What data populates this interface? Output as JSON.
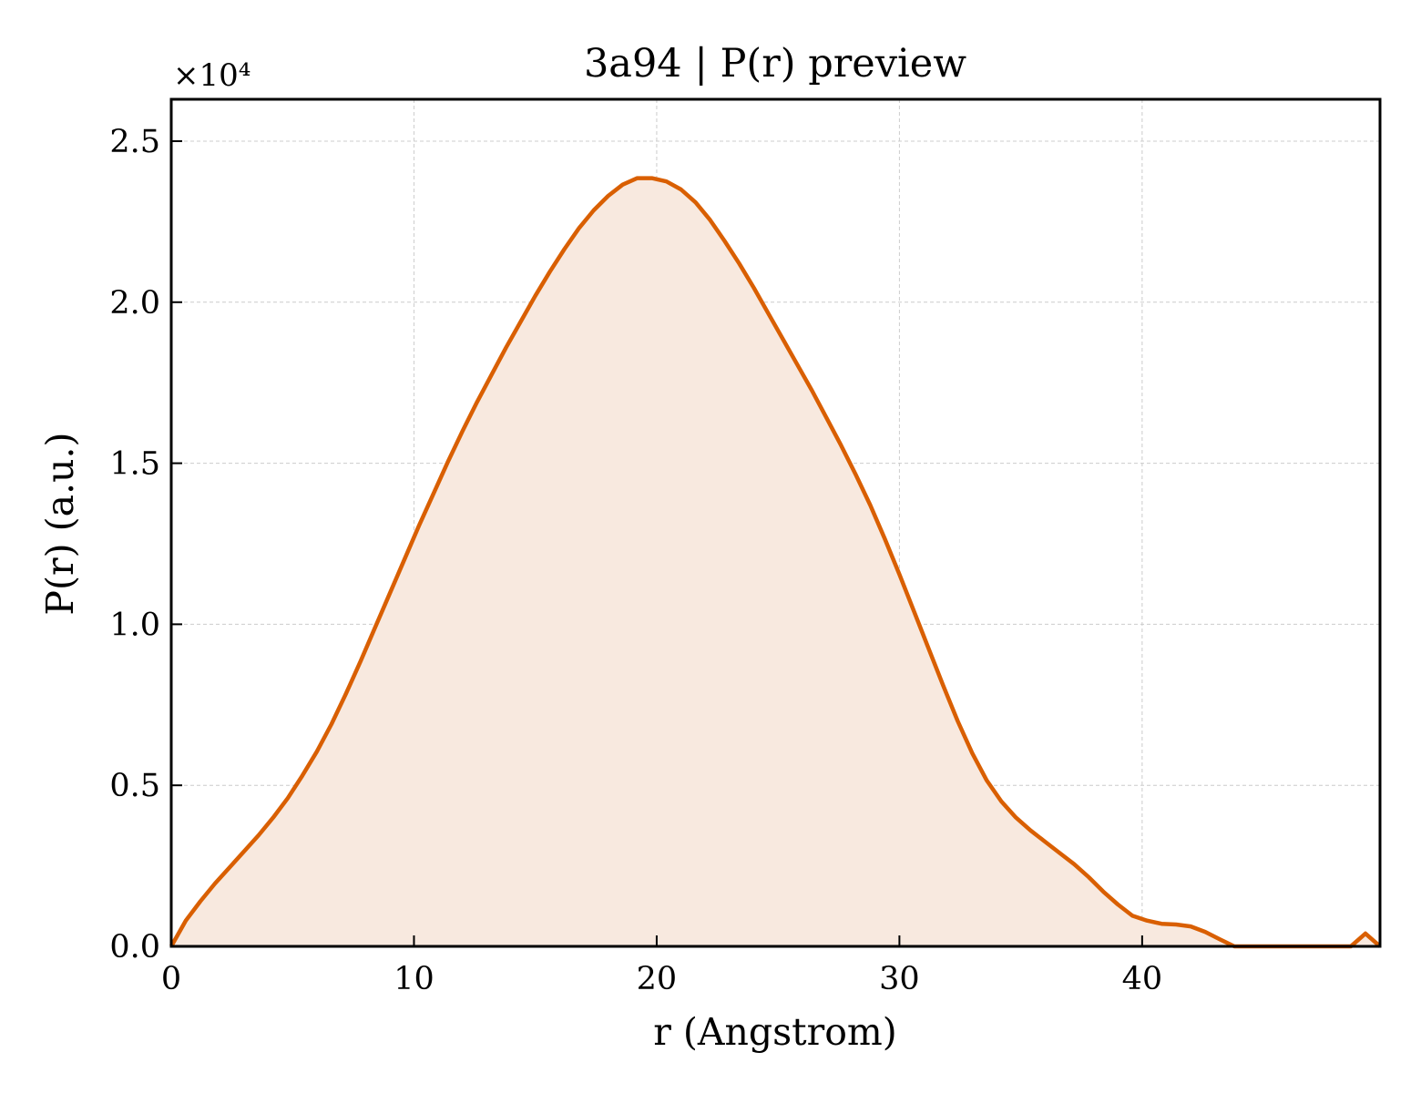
{
  "chart_data": {
    "type": "area",
    "title": "3a94 | P(r) preview",
    "xlabel": "r (Angstrom)",
    "ylabel": "P(r) (a.u.)",
    "y_offset_label": "×10⁴",
    "y_scale_factor": 10000,
    "xlim": [
      0,
      49.8
    ],
    "ylim": [
      0,
      26300
    ],
    "x_ticks": [
      0,
      10,
      20,
      30,
      40
    ],
    "x_tick_labels": [
      "0",
      "10",
      "20",
      "30",
      "40"
    ],
    "y_ticks": [
      0,
      5000,
      10000,
      15000,
      20000,
      25000
    ],
    "y_tick_labels": [
      "0.0",
      "0.5",
      "1.0",
      "1.5",
      "2.0",
      "2.5"
    ],
    "grid": true,
    "line_color": "#d95f02",
    "fill_color": "#f8e9df",
    "series": [
      {
        "x": [
          0,
          0.6,
          1.2,
          1.8,
          2.4,
          3.0,
          3.6,
          4.2,
          4.8,
          5.4,
          6.0,
          6.6,
          7.2,
          7.8,
          8.4,
          9.0,
          9.6,
          10.2,
          10.8,
          11.4,
          12.0,
          12.6,
          13.2,
          13.8,
          14.4,
          15.0,
          15.6,
          16.2,
          16.8,
          17.4,
          18.0,
          18.6,
          19.2,
          19.8,
          20.4,
          21.0,
          21.6,
          22.2,
          22.8,
          23.4,
          24.0,
          24.6,
          25.2,
          25.8,
          26.4,
          27.0,
          27.6,
          28.2,
          28.8,
          29.4,
          30.0,
          30.6,
          31.2,
          31.8,
          32.4,
          33.0,
          33.6,
          34.2,
          34.8,
          35.4,
          36.0,
          36.6,
          37.2,
          37.8,
          38.4,
          39.0,
          39.6,
          40.2,
          40.8,
          41.4,
          42.0,
          42.6,
          43.2,
          43.8,
          44.4,
          45.0,
          45.6,
          46.2,
          46.8,
          47.4,
          48.0,
          48.6,
          49.2,
          49.8
        ],
        "y": [
          0,
          800,
          1400,
          1950,
          2450,
          2950,
          3450,
          4000,
          4600,
          5300,
          6050,
          6900,
          7850,
          8850,
          9900,
          10950,
          12000,
          13050,
          14050,
          15050,
          16000,
          16900,
          17750,
          18600,
          19400,
          20200,
          20950,
          21650,
          22300,
          22850,
          23300,
          23650,
          23850,
          23850,
          23750,
          23500,
          23100,
          22550,
          21900,
          21200,
          20450,
          19650,
          18850,
          18050,
          17250,
          16400,
          15550,
          14650,
          13700,
          12650,
          11550,
          10400,
          9250,
          8100,
          7000,
          6000,
          5150,
          4500,
          4000,
          3600,
          3250,
          2900,
          2550,
          2150,
          1700,
          1300,
          950,
          800,
          700,
          680,
          620,
          450,
          220,
          0,
          0,
          0,
          0,
          0,
          0,
          0,
          0,
          0,
          400,
          0
        ]
      }
    ]
  }
}
